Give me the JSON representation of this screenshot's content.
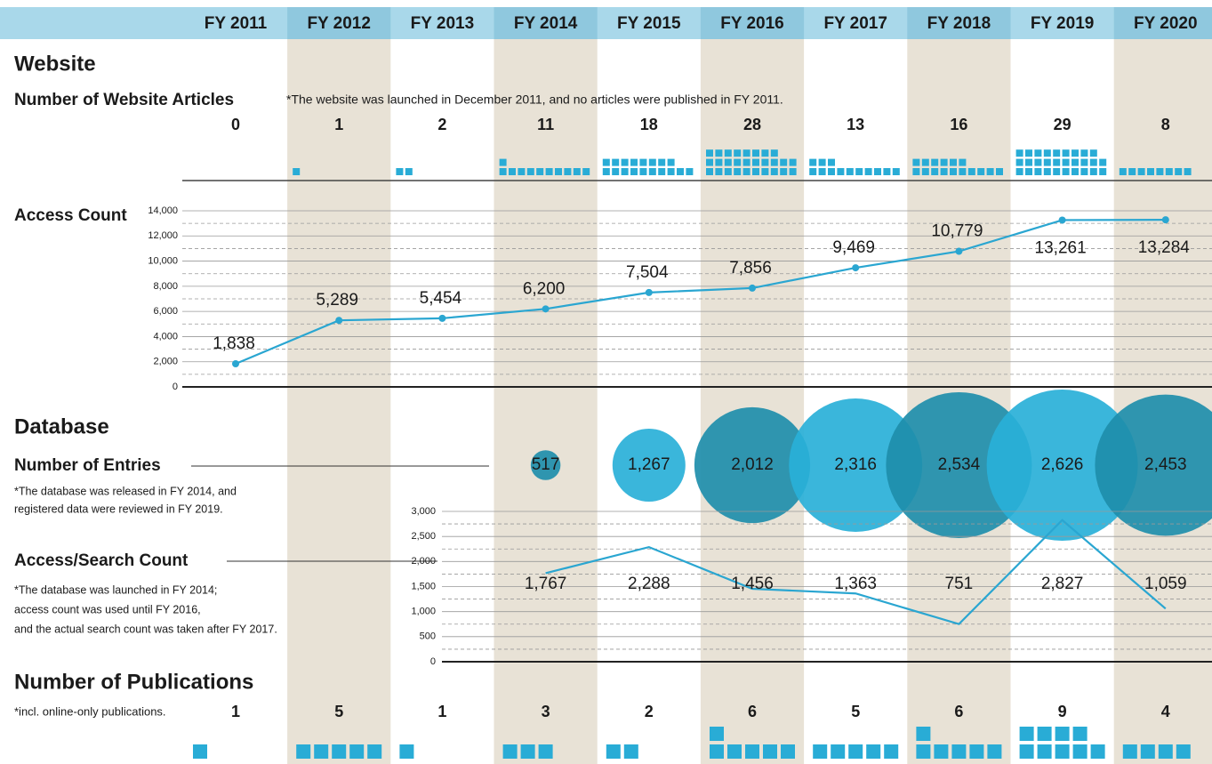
{
  "header": {
    "years": [
      "FY 2011",
      "FY 2012",
      "FY 2013",
      "FY 2014",
      "FY 2015",
      "FY 2016",
      "FY 2017",
      "FY 2018",
      "FY 2019",
      "FY 2020"
    ]
  },
  "sections": {
    "website": "Website",
    "database": "Database"
  },
  "chart_data": [
    {
      "type": "units",
      "title": "Number of Website Articles",
      "note": "*The website was launched in December 2011, and no articles were published in FY 2011.",
      "values": [
        0,
        1,
        2,
        11,
        18,
        28,
        13,
        16,
        29,
        8
      ],
      "color": "#29acd6",
      "per_row": 10
    },
    {
      "type": "line",
      "title": "Access Count",
      "values": [
        1838,
        5289,
        5454,
        6200,
        7504,
        7856,
        9469,
        10779,
        13261,
        13284
      ],
      "value_labels": [
        "1,838",
        "5,289",
        "5,454",
        "6,200",
        "7,504",
        "7,856",
        "9,469",
        "10,779",
        "13,261",
        "13,284"
      ],
      "color": "#2aa6d1",
      "markers": true,
      "ylim": [
        0,
        14000
      ],
      "yticks": [
        0,
        {
          "value": 2000,
          "label": "2,000"
        },
        {
          "value": 4000,
          "label": "4,000"
        },
        {
          "value": 6000,
          "label": "6,000"
        },
        {
          "value": 8000,
          "label": "8,000"
        },
        {
          "value": 10000,
          "label": "10,000"
        },
        {
          "value": 12000,
          "label": "12,000"
        },
        {
          "value": 14000,
          "label": "14,000"
        }
      ],
      "minor_yticks": [
        1000,
        3000,
        5000,
        7000,
        9000,
        11000,
        13000
      ],
      "grid": true
    },
    {
      "type": "bubble",
      "title": "Number of Entries",
      "note_lines": [
        "*The database was released in FY 2014, and",
        "registered data were reviewed in FY 2019."
      ],
      "values": [
        null,
        null,
        null,
        517,
        1267,
        2012,
        2316,
        2534,
        2626,
        2453
      ],
      "value_labels": [
        null,
        null,
        null,
        "517",
        "1,267",
        "2,012",
        "2,316",
        "2,534",
        "2,626",
        "2,453"
      ],
      "colors": [
        null,
        null,
        null,
        "#1e8eab",
        "#29b0d8",
        "#1e8eab",
        "#29b0d8",
        "#1e8eab",
        "#29b0d8",
        "#1e8eab"
      ]
    },
    {
      "type": "line",
      "title": "Access/Search Count",
      "note_lines": [
        "*The database was launched in FY 2014;",
        "access count was used until FY 2016,",
        "and the actual search count was taken after FY 2017."
      ],
      "values": [
        null,
        null,
        null,
        1767,
        2288,
        1456,
        1363,
        751,
        2827,
        1059
      ],
      "value_labels": [
        null,
        null,
        null,
        "1,767",
        "2,288",
        "1,456",
        "1,363",
        "751",
        "2,827",
        "1,059"
      ],
      "color": "#2aa6d1",
      "markers": false,
      "ylim": [
        0,
        3000
      ],
      "yticks": [
        0,
        500,
        {
          "value": 1000,
          "label": "1,000"
        },
        {
          "value": 1500,
          "label": "1,500"
        },
        {
          "value": 2000,
          "label": "2,000"
        },
        {
          "value": 2500,
          "label": "2,500"
        },
        {
          "value": 3000,
          "label": "3,000"
        }
      ],
      "minor_yticks": [
        250,
        750,
        1250,
        1750,
        2250,
        2750
      ],
      "grid": true
    },
    {
      "type": "units",
      "title": "Number of Publications",
      "note": "*incl. online-only publications.",
      "values": [
        1,
        5,
        1,
        3,
        2,
        6,
        5,
        6,
        9,
        4
      ],
      "color": "#29acd6",
      "per_row": 5
    }
  ]
}
